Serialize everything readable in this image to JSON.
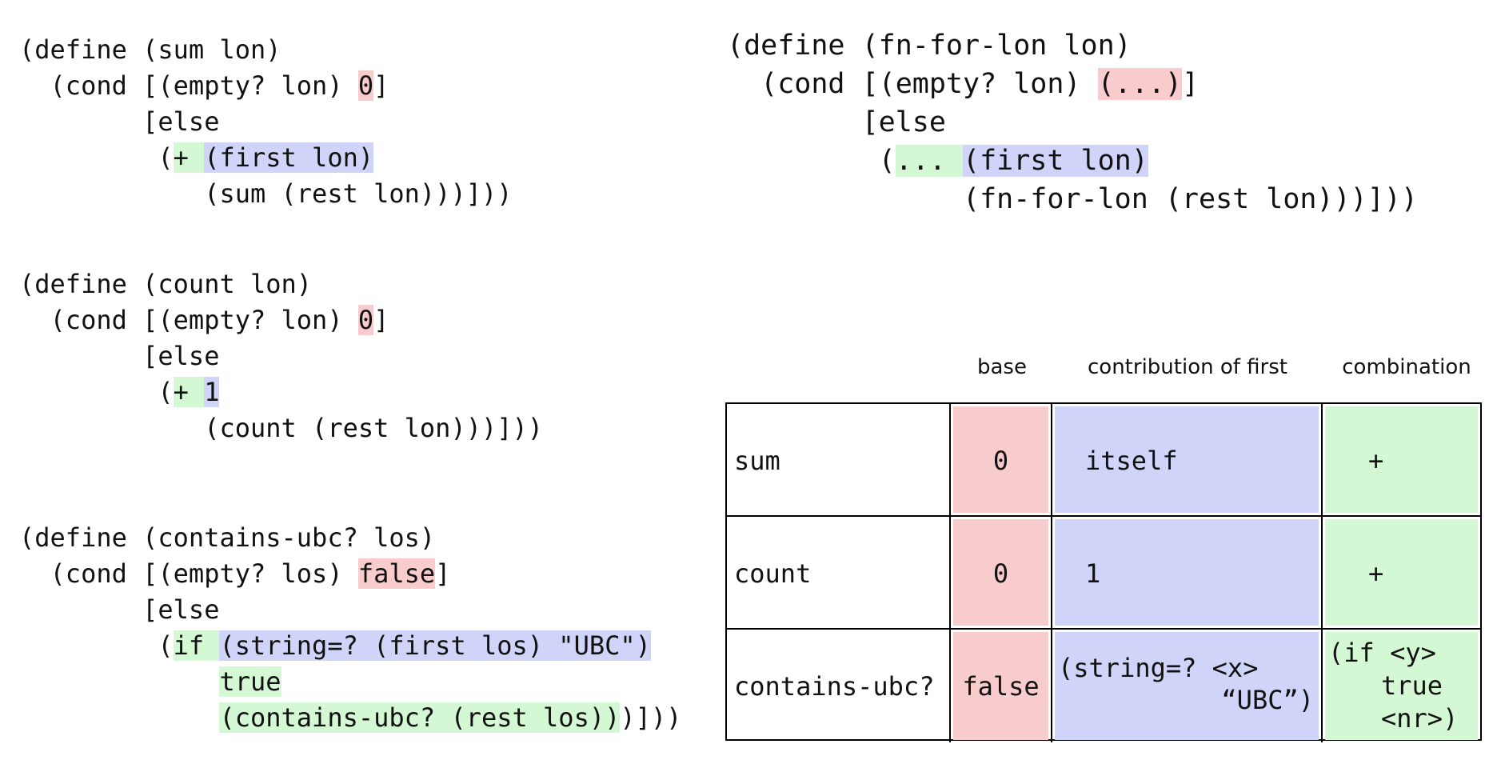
{
  "code_blocks": [
    {
      "lines": [
        [
          "(define (sum lon)"
        ],
        [
          "(cond [(empty? lon) ",
          "0",
          "]"
        ],
        [
          "[else"
        ],
        [
          "(",
          "+ ",
          "(first lon)"
        ],
        [
          "(sum (rest lon)))]))"
        ]
      ]
    },
    {
      "lines": [
        [
          "(define (count lon)"
        ],
        [
          "(cond [(empty? lon) ",
          "0",
          "]"
        ],
        [
          "[else"
        ],
        [
          "(",
          "+ ",
          "1"
        ],
        [
          "(count (rest lon)))]))"
        ]
      ]
    },
    {
      "lines": [
        [
          "(define (contains-ubc? los)"
        ],
        [
          "(cond [(empty? los) ",
          "false",
          "]"
        ],
        [
          "[else"
        ],
        [
          "(",
          "if ",
          "(string=? (first los) \"UBC\")"
        ],
        [
          "true"
        ],
        [
          "(contains-ubc? (rest los))",
          ")]))"
        ]
      ]
    },
    {
      "lines": [
        [
          "(define (fn-for-lon lon)"
        ],
        [
          "(cond [(empty? lon) ",
          "(...)",
          "]"
        ],
        [
          "[else"
        ],
        [
          "(",
          "... ",
          "(first lon)"
        ],
        [
          "(fn-for-lon (rest lon)))]))"
        ]
      ]
    }
  ],
  "table": {
    "headers": [
      "base",
      "contribution of first",
      "combination"
    ],
    "rows": [
      [
        "sum",
        "0",
        "itself",
        "+"
      ],
      [
        "count",
        "0",
        "1",
        "+"
      ],
      [
        "contains-ubc?",
        "false",
        [
          "(string=? <x>",
          "“UBC”)"
        ],
        [
          "(if <y>",
          "true",
          "<nr>)"
        ]
      ]
    ]
  }
}
